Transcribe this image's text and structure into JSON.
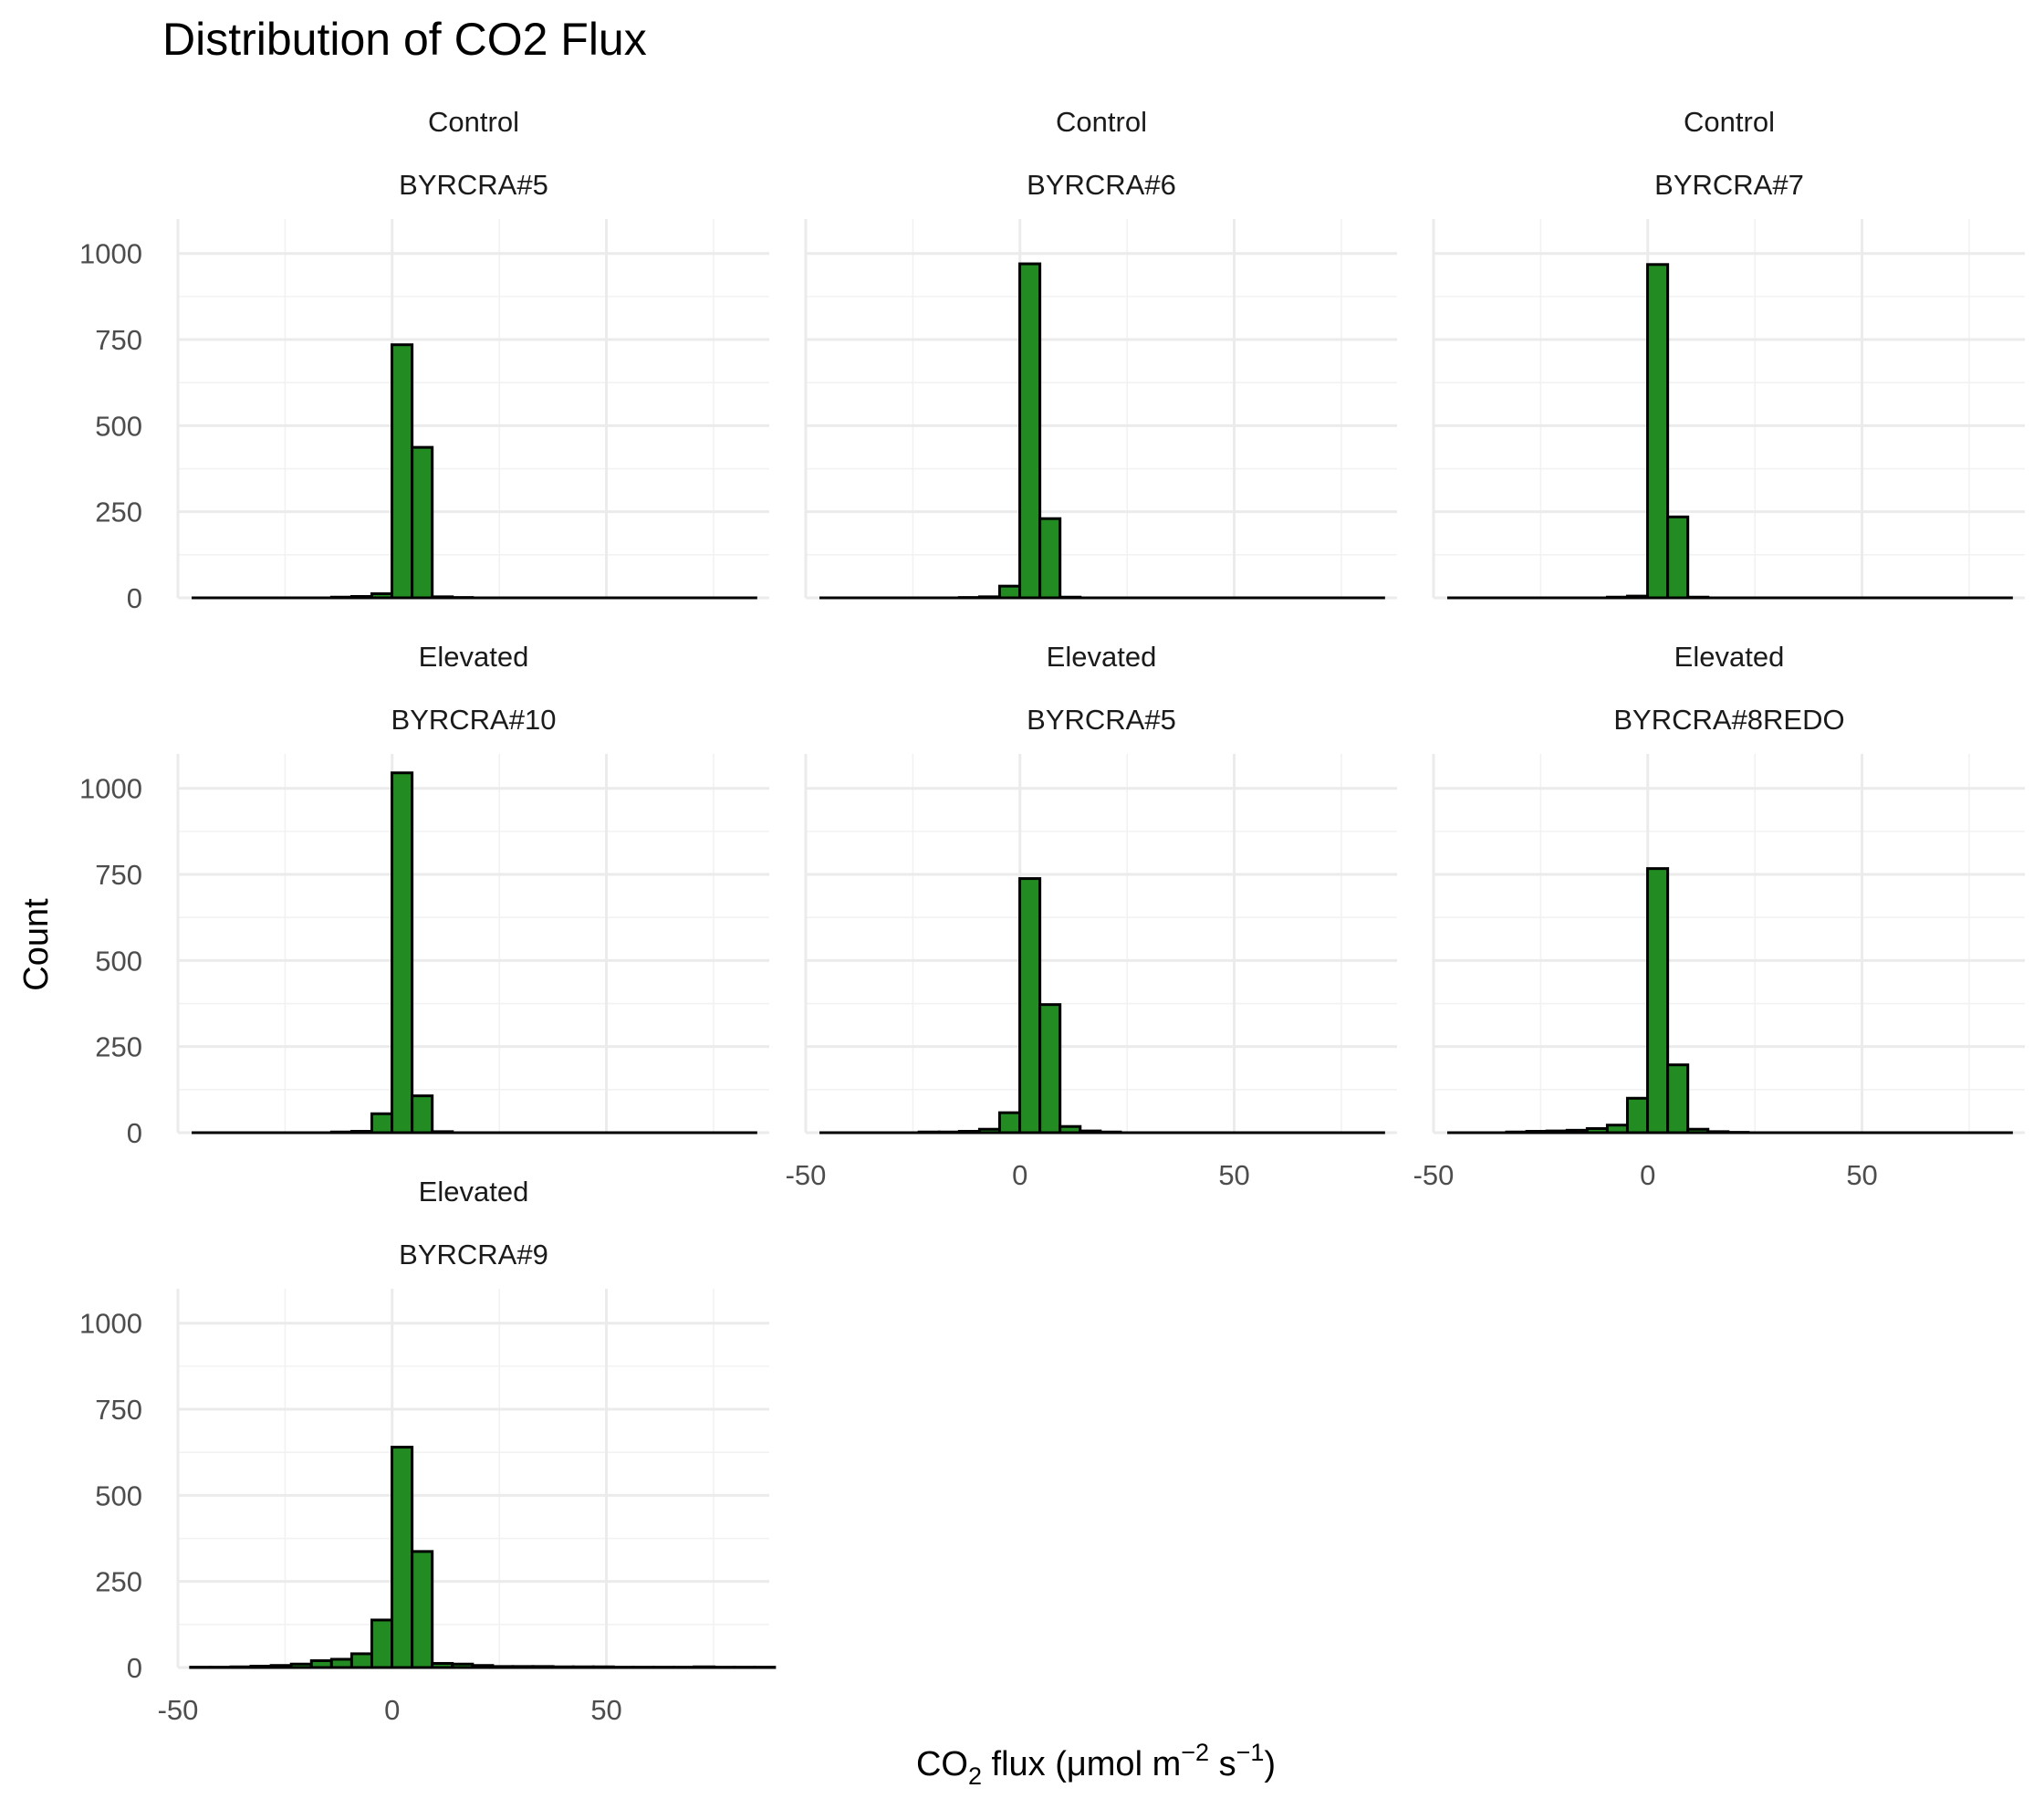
{
  "chart_data": {
    "type": "bar",
    "title": "Distribution of CO2 Flux",
    "xlabel": {
      "base": "CO",
      "sub": "2",
      "rest": " flux (μmol m",
      "sup1": "−2",
      "mid": " s",
      "sup2": "−1",
      "end": ")"
    },
    "ylabel": "Count",
    "xlim": [
      -50,
      88
    ],
    "ylim": [
      0,
      1100
    ],
    "x_ticks": [
      -50,
      0,
      50
    ],
    "y_ticks": [
      0,
      250,
      500,
      750,
      1000
    ],
    "bin_width": 4.7,
    "bar_color": "#228B22",
    "grid": true,
    "panels": [
      {
        "group": "Control",
        "site": "BYRCRA#5",
        "bins": [
          [
            -11.8,
            2
          ],
          [
            -7.1,
            4
          ],
          [
            -2.4,
            12
          ],
          [
            2.3,
            735
          ],
          [
            7.0,
            437
          ],
          [
            11.7,
            3
          ],
          [
            16.4,
            1
          ]
        ]
      },
      {
        "group": "Control",
        "site": "BYRCRA#6",
        "bins": [
          [
            -11.8,
            1
          ],
          [
            -7.1,
            3
          ],
          [
            -2.4,
            34
          ],
          [
            2.3,
            970
          ],
          [
            7.0,
            230
          ],
          [
            11.7,
            2
          ]
        ]
      },
      {
        "group": "Control",
        "site": "BYRCRA#7",
        "bins": [
          [
            -7.1,
            2
          ],
          [
            -2.4,
            5
          ],
          [
            2.3,
            968
          ],
          [
            7.0,
            235
          ],
          [
            11.7,
            2
          ]
        ]
      },
      {
        "group": "Elevated",
        "site": "BYRCRA#10",
        "bins": [
          [
            -11.8,
            2
          ],
          [
            -7.1,
            4
          ],
          [
            -2.4,
            55
          ],
          [
            2.3,
            1045
          ],
          [
            7.0,
            107
          ],
          [
            11.7,
            3
          ]
        ]
      },
      {
        "group": "Elevated",
        "site": "BYRCRA#5",
        "bins": [
          [
            -21.2,
            2
          ],
          [
            -16.5,
            2
          ],
          [
            -11.8,
            4
          ],
          [
            -7.1,
            10
          ],
          [
            -2.4,
            58
          ],
          [
            2.3,
            738
          ],
          [
            7.0,
            372
          ],
          [
            11.7,
            18
          ],
          [
            16.4,
            5
          ],
          [
            21.1,
            2
          ]
        ]
      },
      {
        "group": "Elevated",
        "site": "BYRCRA#8REDO",
        "bins": [
          [
            -30.6,
            2
          ],
          [
            -25.9,
            4
          ],
          [
            -21.2,
            5
          ],
          [
            -16.5,
            7
          ],
          [
            -11.8,
            12
          ],
          [
            -7.1,
            22
          ],
          [
            -2.4,
            100
          ],
          [
            2.3,
            767
          ],
          [
            7.0,
            197
          ],
          [
            11.7,
            10
          ],
          [
            16.4,
            3
          ],
          [
            21.1,
            1
          ]
        ]
      },
      {
        "group": "Elevated",
        "site": "BYRCRA#9",
        "bins": [
          [
            -44.7,
            1
          ],
          [
            -40.0,
            1
          ],
          [
            -35.3,
            2
          ],
          [
            -30.6,
            4
          ],
          [
            -25.9,
            6
          ],
          [
            -21.2,
            10
          ],
          [
            -16.5,
            20
          ],
          [
            -11.8,
            24
          ],
          [
            -7.1,
            40
          ],
          [
            -2.4,
            138
          ],
          [
            2.3,
            640
          ],
          [
            7.0,
            337
          ],
          [
            11.7,
            12
          ],
          [
            16.4,
            10
          ],
          [
            21.1,
            6
          ],
          [
            25.8,
            3
          ],
          [
            30.5,
            3
          ],
          [
            35.2,
            3
          ],
          [
            39.9,
            2
          ],
          [
            44.6,
            2
          ],
          [
            49.3,
            2
          ],
          [
            54.0,
            1
          ],
          [
            58.7,
            1
          ],
          [
            63.4,
            1
          ],
          [
            68.1,
            1
          ],
          [
            72.8,
            2
          ],
          [
            77.5,
            1
          ],
          [
            82.2,
            1
          ],
          [
            86.9,
            1
          ]
        ]
      }
    ]
  }
}
